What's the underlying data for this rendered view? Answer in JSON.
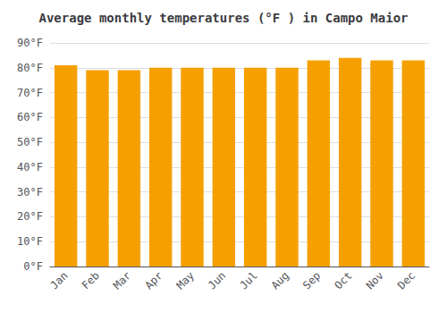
{
  "chart_data": {
    "type": "bar",
    "title": "Average monthly temperatures (°F ) in Campo Maior",
    "categories": [
      "Jan",
      "Feb",
      "Mar",
      "Apr",
      "May",
      "Jun",
      "Jul",
      "Aug",
      "Sep",
      "Oct",
      "Nov",
      "Dec"
    ],
    "values": [
      81,
      79,
      79,
      80,
      80,
      80,
      80,
      80,
      83,
      84,
      83,
      83
    ],
    "color": "#F5A000",
    "ylim": [
      0,
      90
    ],
    "yticks": [
      {
        "value": 0,
        "label": "0°F"
      },
      {
        "value": 10,
        "label": "10°F"
      },
      {
        "value": 20,
        "label": "20°F"
      },
      {
        "value": 30,
        "label": "30°F"
      },
      {
        "value": 40,
        "label": "40°F"
      },
      {
        "value": 50,
        "label": "50°F"
      },
      {
        "value": 60,
        "label": "60°F"
      },
      {
        "value": 70,
        "label": "70°F"
      },
      {
        "value": 80,
        "label": "80°F"
      },
      {
        "value": 90,
        "label": "90°F"
      }
    ],
    "grid": true
  }
}
